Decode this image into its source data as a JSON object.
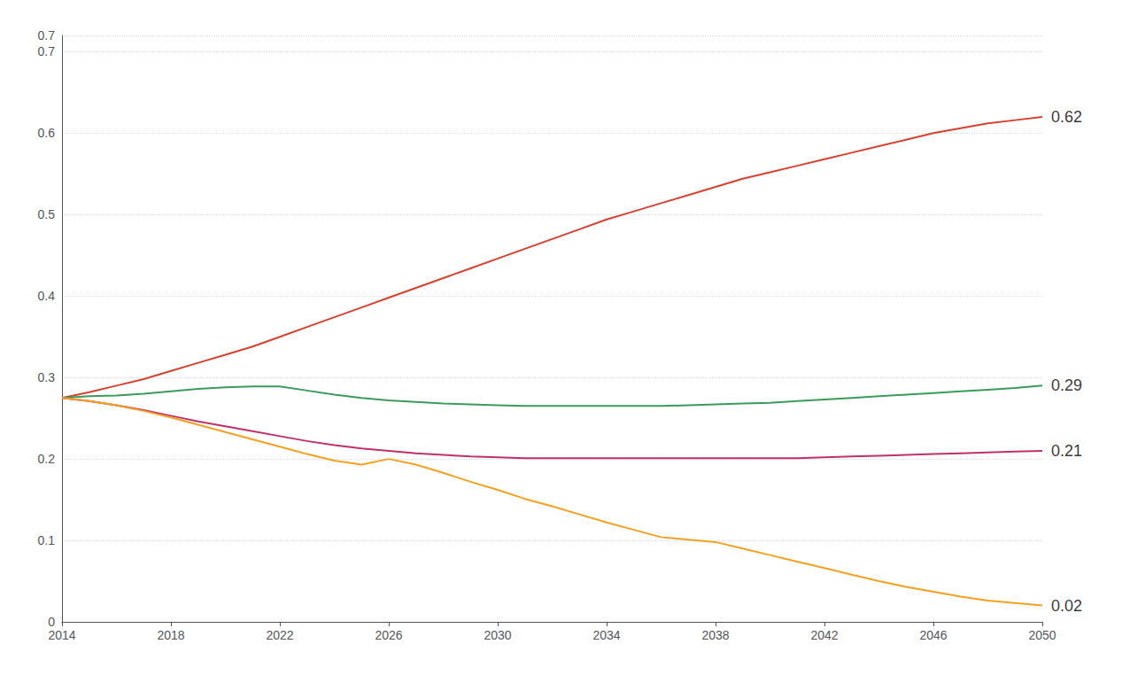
{
  "chart_data": {
    "type": "line",
    "x": [
      2014,
      2015,
      2016,
      2017,
      2018,
      2019,
      2020,
      2021,
      2022,
      2023,
      2024,
      2025,
      2026,
      2027,
      2028,
      2029,
      2030,
      2031,
      2032,
      2033,
      2034,
      2035,
      2036,
      2037,
      2038,
      2039,
      2040,
      2041,
      2042,
      2043,
      2044,
      2045,
      2046,
      2047,
      2048,
      2049,
      2050
    ],
    "series": [
      {
        "color": "#D94030",
        "values": [
          0.275,
          0.282,
          0.29,
          0.298,
          0.308,
          0.318,
          0.328,
          0.338,
          0.35,
          0.362,
          0.374,
          0.386,
          0.398,
          0.41,
          0.422,
          0.434,
          0.446,
          0.458,
          0.47,
          0.482,
          0.494,
          0.504,
          0.514,
          0.524,
          0.534,
          0.544,
          0.552,
          0.56,
          0.568,
          0.576,
          0.584,
          0.592,
          0.6,
          0.606,
          0.612,
          0.616,
          0.62
        ]
      },
      {
        "color": "#3A9B5C",
        "values": [
          0.275,
          0.277,
          0.278,
          0.28,
          0.283,
          0.286,
          0.288,
          0.289,
          0.289,
          0.284,
          0.279,
          0.275,
          0.272,
          0.27,
          0.268,
          0.267,
          0.266,
          0.265,
          0.265,
          0.265,
          0.265,
          0.265,
          0.265,
          0.266,
          0.267,
          0.268,
          0.269,
          0.271,
          0.273,
          0.275,
          0.277,
          0.279,
          0.281,
          0.283,
          0.285,
          0.287,
          0.29
        ]
      },
      {
        "color": "#C0306A",
        "values": [
          0.275,
          0.271,
          0.266,
          0.26,
          0.253,
          0.246,
          0.24,
          0.234,
          0.228,
          0.222,
          0.217,
          0.213,
          0.21,
          0.207,
          0.205,
          0.203,
          0.202,
          0.201,
          0.201,
          0.201,
          0.201,
          0.201,
          0.201,
          0.201,
          0.201,
          0.201,
          0.201,
          0.201,
          0.202,
          0.203,
          0.204,
          0.205,
          0.206,
          0.207,
          0.208,
          0.209,
          0.21
        ]
      },
      {
        "color": "#F5A020",
        "values": [
          0.275,
          0.271,
          0.266,
          0.259,
          0.251,
          0.242,
          0.233,
          0.224,
          0.215,
          0.206,
          0.198,
          0.193,
          0.2,
          0.193,
          0.183,
          0.172,
          0.162,
          0.151,
          0.142,
          0.132,
          0.122,
          0.113,
          0.104,
          0.101,
          0.098,
          0.09,
          0.082,
          0.074,
          0.066,
          0.058,
          0.05,
          0.043,
          0.037,
          0.031,
          0.026,
          0.023,
          0.02
        ]
      }
    ],
    "xlim": [
      2014,
      2050
    ],
    "ylim": [
      0,
      0.72
    ],
    "xticks": [
      2014,
      2018,
      2022,
      2026,
      2030,
      2034,
      2038,
      2042,
      2046,
      2050
    ],
    "yticks": [
      0,
      0.1,
      0.2,
      0.3,
      0.4,
      0.5,
      0.6,
      0.7
    ],
    "grid": true,
    "annotations": [
      {
        "text": "0.62",
        "x": 2050,
        "y": 0.62
      },
      {
        "text": "0.29",
        "x": 2050,
        "y": 0.29
      },
      {
        "text": "0.21",
        "x": 2050,
        "y": 0.21
      },
      {
        "text": "0.02",
        "x": 2050,
        "y": 0.02
      }
    ]
  }
}
